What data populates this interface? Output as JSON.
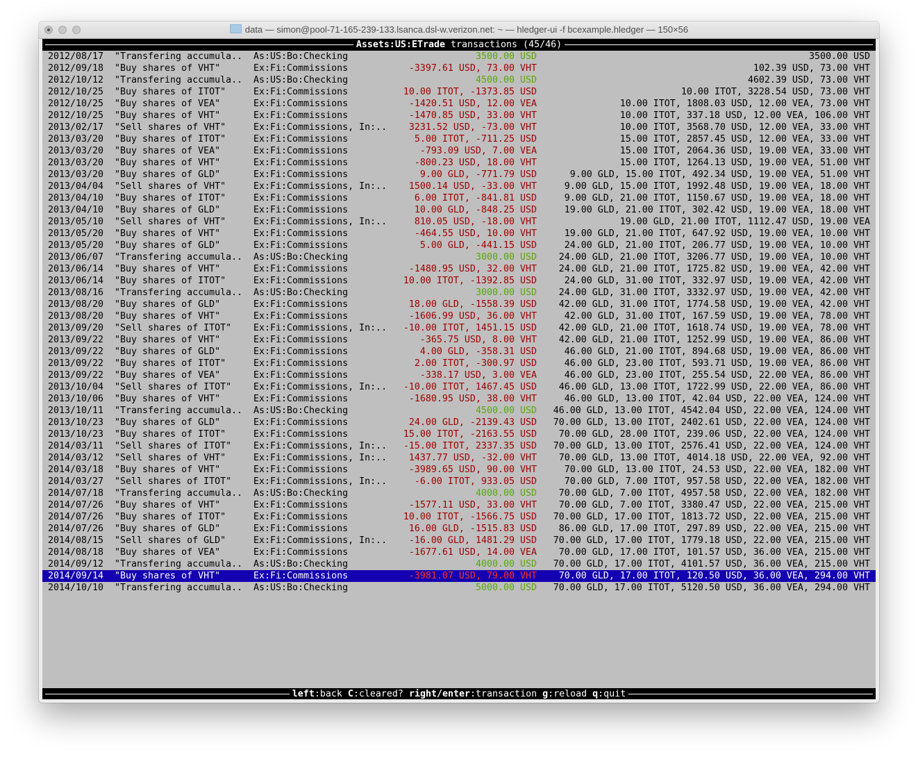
{
  "window": {
    "title": "data — simon@pool-71-165-239-133.lsanca.dsl-w.verizon.net: ~ — hledger-ui -f bcexample.hledger — 150×56"
  },
  "header": {
    "account": "Assets:US:ETrade",
    "suffix": " transactions (45/46)"
  },
  "colors": {
    "background": "#bfbfbf",
    "increase": "#5aa70a",
    "decrease": "#a00000",
    "selected_bg": "#1400b0",
    "selected_decrease": "#ff3020"
  },
  "selected_index": 44,
  "rows": [
    {
      "date": "2012/08/17",
      "desc": "\"Transfering accumula..",
      "account": "As:US:Bo:Checking",
      "change": "3500.00 USD",
      "dir": "increase",
      "balance": "3500.00 USD"
    },
    {
      "date": "2012/09/18",
      "desc": "\"Buy shares of VHT\"",
      "account": "Ex:Fi:Commissions",
      "change": "-3397.61 USD, 73.00 VHT",
      "dir": "decrease",
      "balance": "102.39 USD, 73.00 VHT"
    },
    {
      "date": "2012/10/12",
      "desc": "\"Transfering accumula..",
      "account": "As:US:Bo:Checking",
      "change": "4500.00 USD",
      "dir": "increase",
      "balance": "4602.39 USD, 73.00 VHT"
    },
    {
      "date": "2012/10/25",
      "desc": "\"Buy shares of ITOT\"",
      "account": "Ex:Fi:Commissions",
      "change": "10.00 ITOT, -1373.85 USD",
      "dir": "decrease",
      "balance": "10.00 ITOT, 3228.54 USD, 73.00 VHT"
    },
    {
      "date": "2012/10/25",
      "desc": "\"Buy shares of VEA\"",
      "account": "Ex:Fi:Commissions",
      "change": "-1420.51 USD, 12.00 VEA",
      "dir": "decrease",
      "balance": "10.00 ITOT, 1808.03 USD, 12.00 VEA, 73.00 VHT"
    },
    {
      "date": "2012/10/25",
      "desc": "\"Buy shares of VHT\"",
      "account": "Ex:Fi:Commissions",
      "change": "-1470.85 USD, 33.00 VHT",
      "dir": "decrease",
      "balance": "10.00 ITOT, 337.18 USD, 12.00 VEA, 106.00 VHT"
    },
    {
      "date": "2013/02/17",
      "desc": "\"Sell shares of VHT\"",
      "account": "Ex:Fi:Commissions, In:..",
      "change": "3231.52 USD, -73.00 VHT",
      "dir": "decrease",
      "balance": "10.00 ITOT, 3568.70 USD, 12.00 VEA, 33.00 VHT"
    },
    {
      "date": "2013/03/20",
      "desc": "\"Buy shares of ITOT\"",
      "account": "Ex:Fi:Commissions",
      "change": "5.00 ITOT, -711.25 USD",
      "dir": "decrease",
      "balance": "15.00 ITOT, 2857.45 USD, 12.00 VEA, 33.00 VHT"
    },
    {
      "date": "2013/03/20",
      "desc": "\"Buy shares of VEA\"",
      "account": "Ex:Fi:Commissions",
      "change": "-793.09 USD, 7.00 VEA",
      "dir": "decrease",
      "balance": "15.00 ITOT, 2064.36 USD, 19.00 VEA, 33.00 VHT"
    },
    {
      "date": "2013/03/20",
      "desc": "\"Buy shares of VHT\"",
      "account": "Ex:Fi:Commissions",
      "change": "-800.23 USD, 18.00 VHT",
      "dir": "decrease",
      "balance": "15.00 ITOT, 1264.13 USD, 19.00 VEA, 51.00 VHT"
    },
    {
      "date": "2013/03/20",
      "desc": "\"Buy shares of GLD\"",
      "account": "Ex:Fi:Commissions",
      "change": "9.00 GLD, -771.79 USD",
      "dir": "decrease",
      "balance": "9.00 GLD, 15.00 ITOT, 492.34 USD, 19.00 VEA, 51.00 VHT"
    },
    {
      "date": "2013/04/04",
      "desc": "\"Sell shares of VHT\"",
      "account": "Ex:Fi:Commissions, In:..",
      "change": "1500.14 USD, -33.00 VHT",
      "dir": "decrease",
      "balance": "9.00 GLD, 15.00 ITOT, 1992.48 USD, 19.00 VEA, 18.00 VHT"
    },
    {
      "date": "2013/04/10",
      "desc": "\"Buy shares of ITOT\"",
      "account": "Ex:Fi:Commissions",
      "change": "6.00 ITOT, -841.81 USD",
      "dir": "decrease",
      "balance": "9.00 GLD, 21.00 ITOT, 1150.67 USD, 19.00 VEA, 18.00 VHT"
    },
    {
      "date": "2013/04/10",
      "desc": "\"Buy shares of GLD\"",
      "account": "Ex:Fi:Commissions",
      "change": "10.00 GLD, -848.25 USD",
      "dir": "decrease",
      "balance": "19.00 GLD, 21.00 ITOT, 302.42 USD, 19.00 VEA, 18.00 VHT"
    },
    {
      "date": "2013/05/10",
      "desc": "\"Sell shares of VHT\"",
      "account": "Ex:Fi:Commissions, In:..",
      "change": "810.05 USD, -18.00 VHT",
      "dir": "decrease",
      "balance": "19.00 GLD, 21.00 ITOT, 1112.47 USD, 19.00 VEA"
    },
    {
      "date": "2013/05/20",
      "desc": "\"Buy shares of VHT\"",
      "account": "Ex:Fi:Commissions",
      "change": "-464.55 USD, 10.00 VHT",
      "dir": "decrease",
      "balance": "19.00 GLD, 21.00 ITOT, 647.92 USD, 19.00 VEA, 10.00 VHT"
    },
    {
      "date": "2013/05/20",
      "desc": "\"Buy shares of GLD\"",
      "account": "Ex:Fi:Commissions",
      "change": "5.00 GLD, -441.15 USD",
      "dir": "decrease",
      "balance": "24.00 GLD, 21.00 ITOT, 206.77 USD, 19.00 VEA, 10.00 VHT"
    },
    {
      "date": "2013/06/07",
      "desc": "\"Transfering accumula..",
      "account": "As:US:Bo:Checking",
      "change": "3000.00 USD",
      "dir": "increase",
      "balance": "24.00 GLD, 21.00 ITOT, 3206.77 USD, 19.00 VEA, 10.00 VHT"
    },
    {
      "date": "2013/06/14",
      "desc": "\"Buy shares of VHT\"",
      "account": "Ex:Fi:Commissions",
      "change": "-1480.95 USD, 32.00 VHT",
      "dir": "decrease",
      "balance": "24.00 GLD, 21.00 ITOT, 1725.82 USD, 19.00 VEA, 42.00 VHT"
    },
    {
      "date": "2013/06/14",
      "desc": "\"Buy shares of ITOT\"",
      "account": "Ex:Fi:Commissions",
      "change": "10.00 ITOT, -1392.85 USD",
      "dir": "decrease",
      "balance": "24.00 GLD, 31.00 ITOT, 332.97 USD, 19.00 VEA, 42.00 VHT"
    },
    {
      "date": "2013/08/16",
      "desc": "\"Transfering accumula..",
      "account": "As:US:Bo:Checking",
      "change": "3000.00 USD",
      "dir": "increase",
      "balance": "24.00 GLD, 31.00 ITOT, 3332.97 USD, 19.00 VEA, 42.00 VHT"
    },
    {
      "date": "2013/08/20",
      "desc": "\"Buy shares of GLD\"",
      "account": "Ex:Fi:Commissions",
      "change": "18.00 GLD, -1558.39 USD",
      "dir": "decrease",
      "balance": "42.00 GLD, 31.00 ITOT, 1774.58 USD, 19.00 VEA, 42.00 VHT"
    },
    {
      "date": "2013/08/20",
      "desc": "\"Buy shares of VHT\"",
      "account": "Ex:Fi:Commissions",
      "change": "-1606.99 USD, 36.00 VHT",
      "dir": "decrease",
      "balance": "42.00 GLD, 31.00 ITOT, 167.59 USD, 19.00 VEA, 78.00 VHT"
    },
    {
      "date": "2013/09/20",
      "desc": "\"Sell shares of ITOT\"",
      "account": "Ex:Fi:Commissions, In:..",
      "change": "-10.00 ITOT, 1451.15 USD",
      "dir": "decrease",
      "balance": "42.00 GLD, 21.00 ITOT, 1618.74 USD, 19.00 VEA, 78.00 VHT"
    },
    {
      "date": "2013/09/22",
      "desc": "\"Buy shares of VHT\"",
      "account": "Ex:Fi:Commissions",
      "change": "-365.75 USD, 8.00 VHT",
      "dir": "decrease",
      "balance": "42.00 GLD, 21.00 ITOT, 1252.99 USD, 19.00 VEA, 86.00 VHT"
    },
    {
      "date": "2013/09/22",
      "desc": "\"Buy shares of GLD\"",
      "account": "Ex:Fi:Commissions",
      "change": "4.00 GLD, -358.31 USD",
      "dir": "decrease",
      "balance": "46.00 GLD, 21.00 ITOT, 894.68 USD, 19.00 VEA, 86.00 VHT"
    },
    {
      "date": "2013/09/22",
      "desc": "\"Buy shares of ITOT\"",
      "account": "Ex:Fi:Commissions",
      "change": "2.00 ITOT, -300.97 USD",
      "dir": "decrease",
      "balance": "46.00 GLD, 23.00 ITOT, 593.71 USD, 19.00 VEA, 86.00 VHT"
    },
    {
      "date": "2013/09/22",
      "desc": "\"Buy shares of VEA\"",
      "account": "Ex:Fi:Commissions",
      "change": "-338.17 USD, 3.00 VEA",
      "dir": "decrease",
      "balance": "46.00 GLD, 23.00 ITOT, 255.54 USD, 22.00 VEA, 86.00 VHT"
    },
    {
      "date": "2013/10/04",
      "desc": "\"Sell shares of ITOT\"",
      "account": "Ex:Fi:Commissions, In:..",
      "change": "-10.00 ITOT, 1467.45 USD",
      "dir": "decrease",
      "balance": "46.00 GLD, 13.00 ITOT, 1722.99 USD, 22.00 VEA, 86.00 VHT"
    },
    {
      "date": "2013/10/06",
      "desc": "\"Buy shares of VHT\"",
      "account": "Ex:Fi:Commissions",
      "change": "-1680.95 USD, 38.00 VHT",
      "dir": "decrease",
      "balance": "46.00 GLD, 13.00 ITOT, 42.04 USD, 22.00 VEA, 124.00 VHT"
    },
    {
      "date": "2013/10/11",
      "desc": "\"Transfering accumula..",
      "account": "As:US:Bo:Checking",
      "change": "4500.00 USD",
      "dir": "increase",
      "balance": "46.00 GLD, 13.00 ITOT, 4542.04 USD, 22.00 VEA, 124.00 VHT"
    },
    {
      "date": "2013/10/23",
      "desc": "\"Buy shares of GLD\"",
      "account": "Ex:Fi:Commissions",
      "change": "24.00 GLD, -2139.43 USD",
      "dir": "decrease",
      "balance": "70.00 GLD, 13.00 ITOT, 2402.61 USD, 22.00 VEA, 124.00 VHT"
    },
    {
      "date": "2013/10/23",
      "desc": "\"Buy shares of ITOT\"",
      "account": "Ex:Fi:Commissions",
      "change": "15.00 ITOT, -2163.55 USD",
      "dir": "decrease",
      "balance": "70.00 GLD, 28.00 ITOT, 239.06 USD, 22.00 VEA, 124.00 VHT"
    },
    {
      "date": "2014/03/11",
      "desc": "\"Sell shares of ITOT\"",
      "account": "Ex:Fi:Commissions, In:..",
      "change": "-15.00 ITOT, 2337.35 USD",
      "dir": "decrease",
      "balance": "70.00 GLD, 13.00 ITOT, 2576.41 USD, 22.00 VEA, 124.00 VHT"
    },
    {
      "date": "2014/03/12",
      "desc": "\"Sell shares of VHT\"",
      "account": "Ex:Fi:Commissions, In:..",
      "change": "1437.77 USD, -32.00 VHT",
      "dir": "decrease",
      "balance": "70.00 GLD, 13.00 ITOT, 4014.18 USD, 22.00 VEA, 92.00 VHT"
    },
    {
      "date": "2014/03/18",
      "desc": "\"Buy shares of VHT\"",
      "account": "Ex:Fi:Commissions",
      "change": "-3989.65 USD, 90.00 VHT",
      "dir": "decrease",
      "balance": "70.00 GLD, 13.00 ITOT, 24.53 USD, 22.00 VEA, 182.00 VHT"
    },
    {
      "date": "2014/03/27",
      "desc": "\"Sell shares of ITOT\"",
      "account": "Ex:Fi:Commissions, In:..",
      "change": "-6.00 ITOT, 933.05 USD",
      "dir": "decrease",
      "balance": "70.00 GLD, 7.00 ITOT, 957.58 USD, 22.00 VEA, 182.00 VHT"
    },
    {
      "date": "2014/07/18",
      "desc": "\"Transfering accumula..",
      "account": "As:US:Bo:Checking",
      "change": "4000.00 USD",
      "dir": "increase",
      "balance": "70.00 GLD, 7.00 ITOT, 4957.58 USD, 22.00 VEA, 182.00 VHT"
    },
    {
      "date": "2014/07/26",
      "desc": "\"Buy shares of VHT\"",
      "account": "Ex:Fi:Commissions",
      "change": "-1577.11 USD, 33.00 VHT",
      "dir": "decrease",
      "balance": "70.00 GLD, 7.00 ITOT, 3380.47 USD, 22.00 VEA, 215.00 VHT"
    },
    {
      "date": "2014/07/26",
      "desc": "\"Buy shares of ITOT\"",
      "account": "Ex:Fi:Commissions",
      "change": "10.00 ITOT, -1566.75 USD",
      "dir": "decrease",
      "balance": "70.00 GLD, 17.00 ITOT, 1813.72 USD, 22.00 VEA, 215.00 VHT"
    },
    {
      "date": "2014/07/26",
      "desc": "\"Buy shares of GLD\"",
      "account": "Ex:Fi:Commissions",
      "change": "16.00 GLD, -1515.83 USD",
      "dir": "decrease",
      "balance": "86.00 GLD, 17.00 ITOT, 297.89 USD, 22.00 VEA, 215.00 VHT"
    },
    {
      "date": "2014/08/15",
      "desc": "\"Sell shares of GLD\"",
      "account": "Ex:Fi:Commissions, In:..",
      "change": "-16.00 GLD, 1481.29 USD",
      "dir": "decrease",
      "balance": "70.00 GLD, 17.00 ITOT, 1779.18 USD, 22.00 VEA, 215.00 VHT"
    },
    {
      "date": "2014/08/18",
      "desc": "\"Buy shares of VEA\"",
      "account": "Ex:Fi:Commissions",
      "change": "-1677.61 USD, 14.00 VEA",
      "dir": "decrease",
      "balance": "70.00 GLD, 17.00 ITOT, 101.57 USD, 36.00 VEA, 215.00 VHT"
    },
    {
      "date": "2014/09/12",
      "desc": "\"Transfering accumula..",
      "account": "As:US:Bo:Checking",
      "change": "4000.00 USD",
      "dir": "increase",
      "balance": "70.00 GLD, 17.00 ITOT, 4101.57 USD, 36.00 VEA, 215.00 VHT"
    },
    {
      "date": "2014/09/14",
      "desc": "\"Buy shares of VHT\"",
      "account": "Ex:Fi:Commissions",
      "change": "-3981.07 USD, 79.00 VHT",
      "dir": "decrease",
      "balance": "70.00 GLD, 17.00 ITOT, 120.50 USD, 36.00 VEA, 294.00 VHT"
    },
    {
      "date": "2014/10/10",
      "desc": "\"Transfering accumula..",
      "account": "As:US:Bo:Checking",
      "change": "5000.00 USD",
      "dir": "increase",
      "balance": "70.00 GLD, 17.00 ITOT, 5120.50 USD, 36.00 VEA, 294.00 VHT"
    }
  ],
  "footer": {
    "keys": [
      {
        "key": "left",
        "label": ":back "
      },
      {
        "key": "C",
        "label": ":cleared? "
      },
      {
        "key": "right/enter",
        "label": ":transaction "
      },
      {
        "key": "g",
        "label": ":reload "
      },
      {
        "key": "q",
        "label": ":quit"
      }
    ]
  }
}
